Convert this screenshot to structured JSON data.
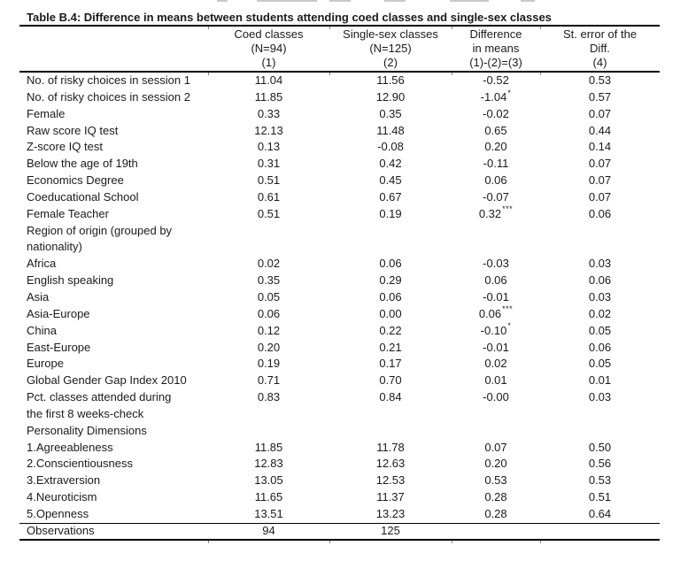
{
  "page": {
    "colors": {
      "background": "#ffffff",
      "text": "#1a1a1a",
      "rule": "#000000"
    }
  },
  "table": {
    "title": "Table B.4: Difference in means between students attending coed classes and single-sex classes",
    "columns": [
      {
        "lines": [
          "",
          "",
          ""
        ]
      },
      {
        "lines": [
          "Coed classes",
          "(N=94)",
          "(1)"
        ]
      },
      {
        "lines": [
          "Single-sex classes",
          "(N=125)",
          "(2)"
        ]
      },
      {
        "lines": [
          "Difference",
          "in means",
          "(1)-(2)=(3)"
        ]
      },
      {
        "lines": [
          "St. error of the",
          "Diff.",
          "(4)"
        ]
      }
    ],
    "rows": [
      {
        "label": "No. of risky choices in session 1",
        "coed": "11.04",
        "single": "11.56",
        "diff": "-0.52",
        "stars": "",
        "se": "0.53"
      },
      {
        "label": "No. of risky choices in session 2",
        "coed": "11.85",
        "single": "12.90",
        "diff": "-1.04",
        "stars": "*",
        "se": "0.57"
      },
      {
        "label": "Female",
        "coed": "0.33",
        "single": "0.35",
        "diff": "-0.02",
        "stars": "",
        "se": "0.07"
      },
      {
        "label": "Raw score IQ test",
        "coed": "12.13",
        "single": "11.48",
        "diff": "0.65",
        "stars": "",
        "se": "0.44"
      },
      {
        "label": "Z-score IQ test",
        "coed": "0.13",
        "single": "-0.08",
        "diff": "0.20",
        "stars": "",
        "se": "0.14"
      },
      {
        "label": "Below the age of 19th",
        "coed": "0.31",
        "single": "0.42",
        "diff": "-0.11",
        "stars": "",
        "se": "0.07"
      },
      {
        "label": "Economics Degree",
        "coed": "0.51",
        "single": "0.45",
        "diff": "0.06",
        "stars": "",
        "se": "0.07"
      },
      {
        "label": "Coeducational School",
        "coed": "0.61",
        "single": "0.67",
        "diff": "-0.07",
        "stars": "",
        "se": "0.07"
      },
      {
        "label": "Female Teacher",
        "coed": "0.51",
        "single": "0.19",
        "diff": "0.32",
        "stars": "***",
        "se": "0.06"
      },
      {
        "label": "Region of origin (grouped by",
        "coed": "",
        "single": "",
        "diff": "",
        "stars": "",
        "se": ""
      },
      {
        "label": "nationality)",
        "coed": "",
        "single": "",
        "diff": "",
        "stars": "",
        "se": ""
      },
      {
        "label": "Africa",
        "coed": "0.02",
        "single": "0.06",
        "diff": "-0.03",
        "stars": "",
        "se": "0.03"
      },
      {
        "label": "English speaking",
        "coed": "0.35",
        "single": "0.29",
        "diff": "0.06",
        "stars": "",
        "se": "0.06"
      },
      {
        "label": "Asia",
        "coed": "0.05",
        "single": "0.06",
        "diff": "-0.01",
        "stars": "",
        "se": "0.03"
      },
      {
        "label": "Asia-Europe",
        "coed": "0.06",
        "single": "0.00",
        "diff": "0.06",
        "stars": "***",
        "se": "0.02"
      },
      {
        "label": "China",
        "coed": "0.12",
        "single": "0.22",
        "diff": "-0.10",
        "stars": "*",
        "se": "0.05"
      },
      {
        "label": "East-Europe",
        "coed": "0.20",
        "single": "0.21",
        "diff": "-0.01",
        "stars": "",
        "se": "0.06"
      },
      {
        "label": "Europe",
        "coed": "0.19",
        "single": "0.17",
        "diff": "0.02",
        "stars": "",
        "se": "0.05"
      },
      {
        "label": "Global Gender Gap Index 2010",
        "coed": "0.71",
        "single": "0.70",
        "diff": "0.01",
        "stars": "",
        "se": "0.01"
      },
      {
        "label": "Pct. classes attended during",
        "coed": "0.83",
        "single": "0.84",
        "diff": "-0.00",
        "stars": "",
        "se": "0.03"
      },
      {
        "label": "the first 8 weeks-check",
        "coed": "",
        "single": "",
        "diff": "",
        "stars": "",
        "se": ""
      },
      {
        "label": "Personality Dimensions",
        "coed": "",
        "single": "",
        "diff": "",
        "stars": "",
        "se": ""
      },
      {
        "label": "1.Agreeableness",
        "coed": "11.85",
        "single": "11.78",
        "diff": "0.07",
        "stars": "",
        "se": "0.50"
      },
      {
        "label": "2.Conscientiousness",
        "coed": "12.83",
        "single": "12.63",
        "diff": "0.20",
        "stars": "",
        "se": "0.56"
      },
      {
        "label": "3.Extraversion",
        "coed": "13.05",
        "single": "12.53",
        "diff": "0.53",
        "stars": "",
        "se": "0.53"
      },
      {
        "label": "4.Neuroticism",
        "coed": "11.65",
        "single": "11.37",
        "diff": "0.28",
        "stars": "",
        "se": "0.51"
      },
      {
        "label": "5.Openness",
        "coed": "13.51",
        "single": "13.23",
        "diff": "0.28",
        "stars": "",
        "se": "0.64"
      }
    ],
    "footer": {
      "label": "Observations",
      "coed": "94",
      "single": "125",
      "diff": "",
      "se": ""
    }
  }
}
